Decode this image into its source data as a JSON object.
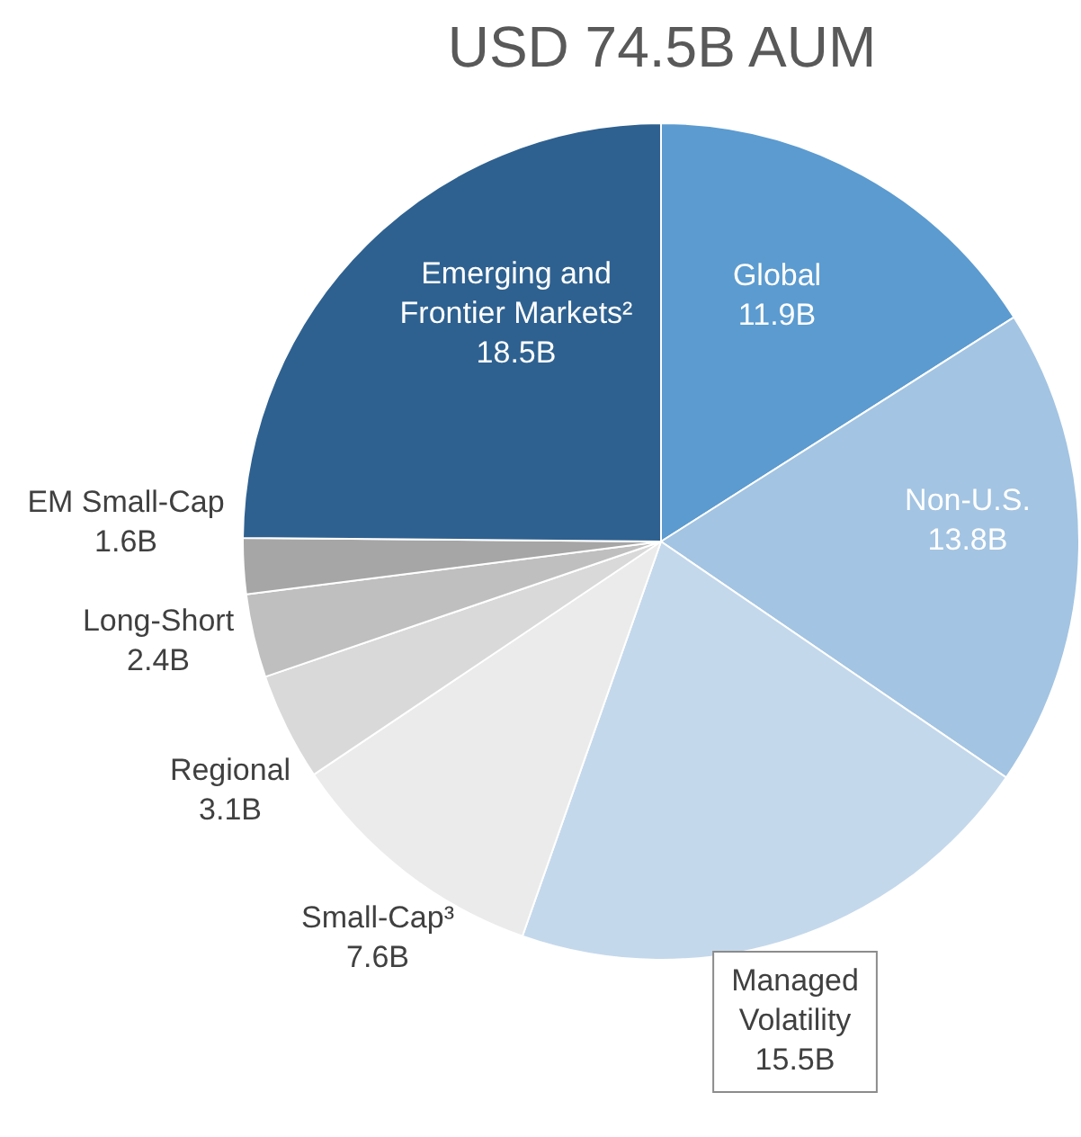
{
  "chart_data": {
    "type": "pie",
    "title": "USD 74.5B AUM",
    "categories": [
      "Global",
      "Non-U.S.",
      "Managed Volatility",
      "Small-Cap³",
      "Regional",
      "Long-Short",
      "EM Small-Cap",
      "Emerging and Frontier Markets²"
    ],
    "values": [
      11.9,
      13.8,
      15.5,
      7.6,
      3.1,
      2.4,
      1.6,
      18.5
    ],
    "value_labels": [
      "11.9B",
      "13.8B",
      "15.5B",
      "7.6B",
      "3.1B",
      "2.4B",
      "1.6B",
      "18.5B"
    ],
    "colors": [
      "#5b9bd0",
      "#a3c4e2",
      "#c4d8ec",
      "#ebebeb",
      "#d9d9d9",
      "#bfbfbf",
      "#a6a6a6",
      "#2e6190"
    ],
    "legend": false
  }
}
